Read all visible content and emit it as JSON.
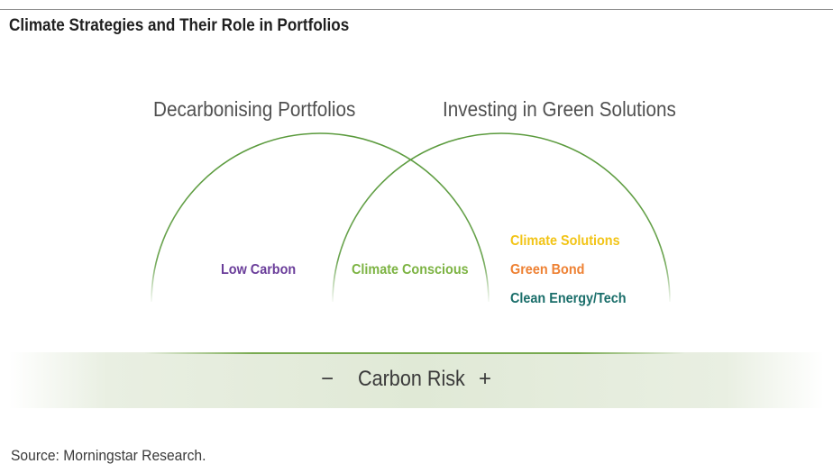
{
  "title": "Climate Strategies and Their Role in Portfolios",
  "sets": {
    "left_label": "Decarbonising Portfolios",
    "right_label": "Investing in Green Solutions"
  },
  "categories": {
    "low_carbon": "Low Carbon",
    "climate_conscious": "Climate Conscious",
    "climate_solutions": "Climate Solutions",
    "green_bond": "Green Bond",
    "clean_energy_tech": "Clean Energy/Tech"
  },
  "carbon_risk": {
    "minus_symbol": "−",
    "label": "Carbon Risk",
    "plus_symbol": "+"
  },
  "source": "Source: Morningstar Research.",
  "colors": {
    "arc": "#5a9a3c",
    "low_carbon": "#6a3d9a",
    "climate_conscious": "#7cb342",
    "climate_solutions": "#f2c417",
    "green_bond": "#ee8133",
    "clean_energy_tech": "#1a6e6a",
    "band": "#e0e9d6"
  }
}
